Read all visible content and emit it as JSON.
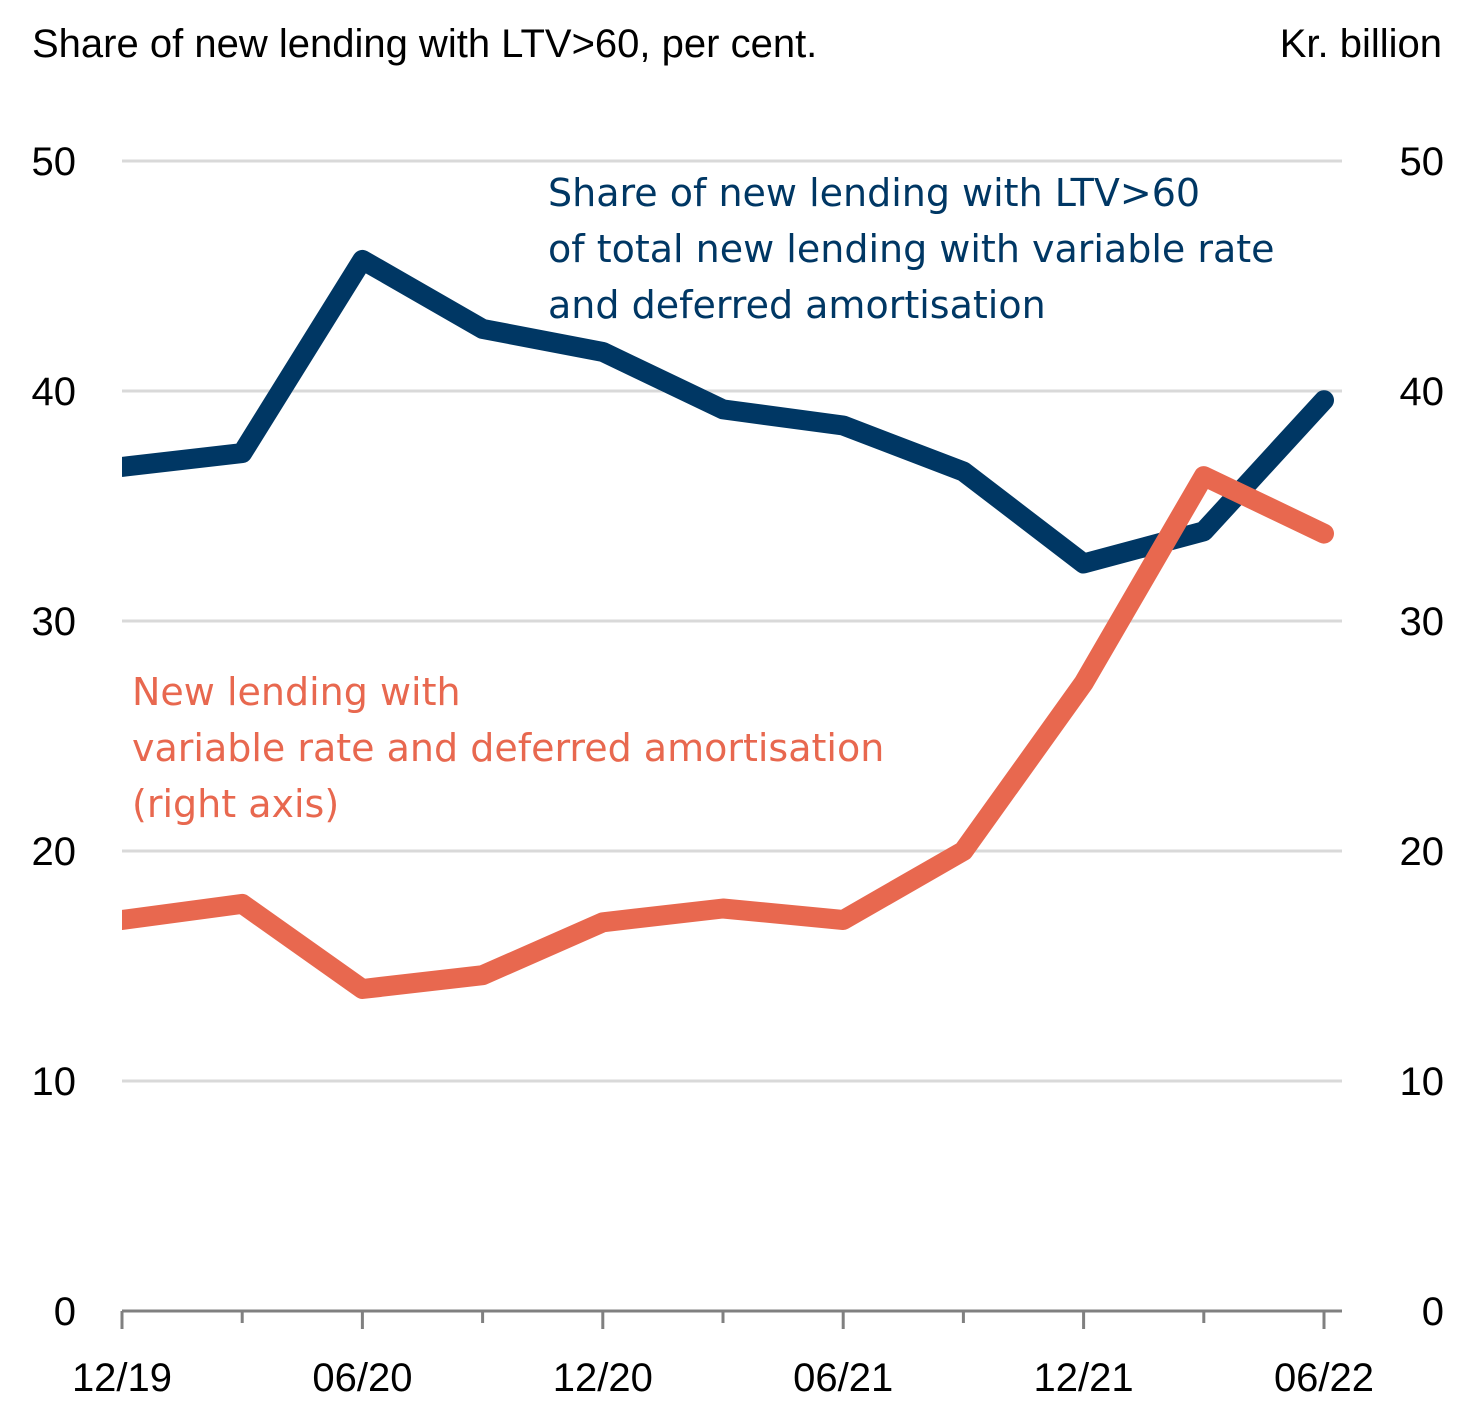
{
  "chart_data": {
    "type": "line",
    "title": "",
    "left_axis_label": "Share of new lending with LTV>60, per cent.",
    "right_axis_label": "Kr. billion",
    "xlabel": "",
    "x": [
      "12/19",
      "03/20",
      "06/20",
      "09/20",
      "12/20",
      "03/21",
      "06/21",
      "09/21",
      "12/21",
      "03/22",
      "06/22"
    ],
    "x_tick_labels": [
      "12/19",
      "06/20",
      "12/20",
      "06/21",
      "12/21",
      "06/22"
    ],
    "ylim_left": [
      0,
      50
    ],
    "ylim_right": [
      0,
      50
    ],
    "y_ticks_left": [
      "0",
      "10",
      "20",
      "30",
      "40",
      "50"
    ],
    "y_ticks_right": [
      "0",
      "10",
      "20",
      "30",
      "40",
      "50"
    ],
    "grid": true,
    "series": [
      {
        "name": "Share of new lending with LTV>60 of total new lending with variable rate and deferred amortisation",
        "axis": "left",
        "color": "#003764",
        "values": [
          36.7,
          37.3,
          45.7,
          42.7,
          41.7,
          39.2,
          38.5,
          36.5,
          32.5,
          33.9,
          39.6
        ]
      },
      {
        "name": "New lending with variable rate and deferred amortisation (right axis)",
        "axis": "right",
        "color": "#E8684F",
        "values": [
          17.0,
          17.7,
          14.0,
          14.6,
          16.9,
          17.5,
          17.0,
          20.0,
          27.3,
          36.3,
          33.8
        ]
      }
    ],
    "annotations": {
      "blue_label": [
        "Share of new lending with LTV>60",
        "of total new lending with variable rate",
        "and deferred amortisation"
      ],
      "orange_label": [
        "New lending with",
        "variable rate and deferred amortisation",
        "(right axis)"
      ]
    }
  }
}
